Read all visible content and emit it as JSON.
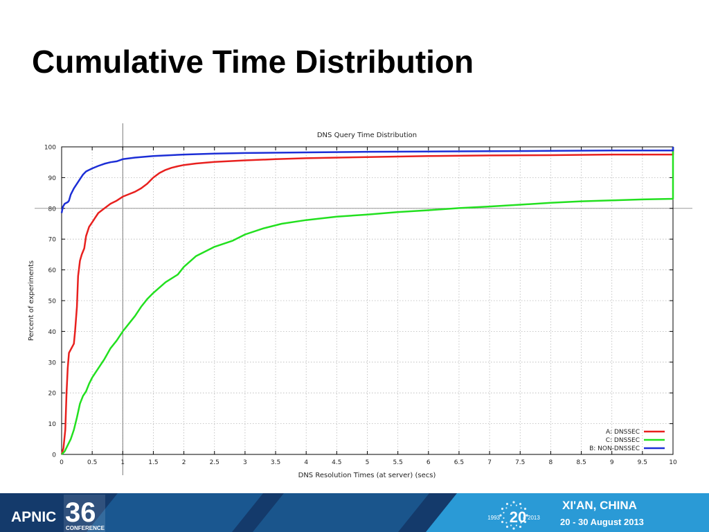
{
  "slide": {
    "title": "Cumulative Time Distribution"
  },
  "footer": {
    "brand_prefix": "APNIC",
    "brand_number": "36",
    "brand_sub": "CONFERENCE",
    "anniv_number": "20",
    "anniv_start": "1993",
    "anniv_end": "2013",
    "location": "XI'AN, CHINA",
    "dates": "20 - 30 August 2013",
    "colors": {
      "dark_blue": "#143a6b",
      "mid_blue": "#1f6fae",
      "light_blue": "#2a9ad6"
    }
  },
  "chart_data": {
    "type": "line",
    "title": "DNS Query Time Distribution",
    "xlabel": "DNS Resolution Times (at server) (secs)",
    "ylabel": "Percent of experiments",
    "xlim": [
      0,
      10
    ],
    "ylim": [
      0,
      100
    ],
    "xticks": [
      "0",
      "0.5",
      "1",
      "1.5",
      "2",
      "2.5",
      "3",
      "3.5",
      "4",
      "4.5",
      "5",
      "5.5",
      "6",
      "6.5",
      "7",
      "7.5",
      "8",
      "8.5",
      "9",
      "9.5",
      "10"
    ],
    "yticks": [
      "0",
      "10",
      "20",
      "30",
      "40",
      "50",
      "60",
      "70",
      "80",
      "90",
      "100"
    ],
    "grid": true,
    "legend_position": "bottom-right",
    "reference_lines": {
      "x": 1,
      "y": 80
    },
    "series": [
      {
        "name": "A: DNSSEC",
        "color": "#e8201e",
        "x": [
          0,
          0.03,
          0.06,
          0.08,
          0.1,
          0.12,
          0.2,
          0.22,
          0.25,
          0.27,
          0.3,
          0.33,
          0.37,
          0.4,
          0.45,
          0.5,
          0.55,
          0.6,
          0.7,
          0.8,
          0.9,
          1,
          1.1,
          1.2,
          1.3,
          1.4,
          1.45,
          1.5,
          1.6,
          1.7,
          1.8,
          1.9,
          2,
          2.2,
          2.5,
          3,
          3.5,
          4,
          5,
          6,
          7,
          8,
          9,
          10,
          10
        ],
        "y": [
          0,
          2,
          8,
          20,
          28,
          33,
          36,
          40,
          48,
          58,
          63,
          65,
          67,
          71,
          74,
          75.5,
          77,
          78.5,
          80,
          81.5,
          82.5,
          83.8,
          84.6,
          85.4,
          86.5,
          88,
          89,
          90,
          91.5,
          92.5,
          93.2,
          93.7,
          94.1,
          94.6,
          95.1,
          95.6,
          96,
          96.3,
          96.7,
          97,
          97.2,
          97.3,
          97.5,
          97.5,
          100
        ]
      },
      {
        "name": "C: DNSSEC",
        "color": "#22e01f",
        "x": [
          0,
          0.05,
          0.1,
          0.15,
          0.2,
          0.25,
          0.3,
          0.35,
          0.4,
          0.45,
          0.5,
          0.55,
          0.6,
          0.7,
          0.8,
          0.9,
          1,
          1.1,
          1.2,
          1.3,
          1.4,
          1.5,
          1.7,
          1.9,
          2,
          2.2,
          2.5,
          2.8,
          3,
          3.3,
          3.6,
          4,
          4.5,
          5,
          5.5,
          6,
          6.5,
          7,
          7.5,
          8,
          8.5,
          9,
          9.5,
          10,
          10
        ],
        "y": [
          0,
          1,
          3,
          5,
          8,
          12,
          16.5,
          19,
          20.5,
          23,
          25,
          26.5,
          28,
          31,
          34.5,
          37,
          40,
          42.5,
          45,
          48,
          50.5,
          52.5,
          56,
          58.5,
          61,
          64.5,
          67.5,
          69.5,
          71.5,
          73.5,
          75,
          76.2,
          77.3,
          78,
          78.8,
          79.4,
          80.1,
          80.6,
          81.2,
          81.8,
          82.3,
          82.6,
          82.9,
          83.1,
          100
        ]
      },
      {
        "name": "B: NON-DNSSEC",
        "color": "#1c2ed6",
        "x": [
          0,
          0.02,
          0.05,
          0.1,
          0.12,
          0.15,
          0.2,
          0.3,
          0.35,
          0.4,
          0.5,
          0.6,
          0.7,
          0.8,
          0.9,
          1,
          1.2,
          1.5,
          2,
          2.5,
          3,
          4,
          5,
          6,
          7,
          8,
          9,
          10,
          10
        ],
        "y": [
          78.5,
          80.5,
          81.5,
          82,
          82.5,
          84.5,
          86.5,
          89.5,
          91,
          92,
          93,
          93.8,
          94.5,
          95,
          95.3,
          96,
          96.5,
          97,
          97.5,
          97.8,
          98,
          98.2,
          98.4,
          98.5,
          98.6,
          98.7,
          98.8,
          98.8,
          100
        ]
      }
    ]
  }
}
